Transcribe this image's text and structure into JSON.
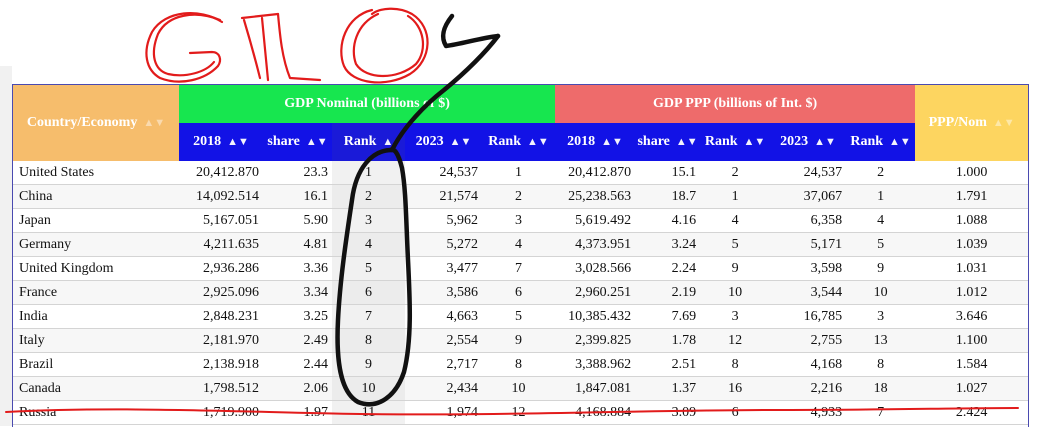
{
  "annotation": {
    "handwritten_text": "G10",
    "ink_colors": {
      "red": "#e21b1b",
      "black": "#111111"
    }
  },
  "table": {
    "header": {
      "country": "Country/Economy",
      "gdp_nominal": "GDP Nominal (billions of $)",
      "gdp_ppp": "GDP PPP (billions of Int. $)",
      "ppp_nom": "PPP/Nom",
      "sub": [
        "2018",
        "share",
        "Rank",
        "2023",
        "Rank",
        "2018",
        "share",
        "Rank",
        "2023",
        "Rank"
      ]
    },
    "colors": {
      "country": "#f6bd6c",
      "gdp_nominal": "#17e64f",
      "gdp_ppp": "#ee6b6b",
      "sub": "#1212e6",
      "ppp_nom": "#fdd560"
    },
    "rows": [
      [
        "United States",
        "20,412.870",
        "23.3",
        "1",
        "24,537",
        "1",
        "20,412.870",
        "15.1",
        "2",
        "24,537",
        "2",
        "1.000"
      ],
      [
        "China",
        "14,092.514",
        "16.1",
        "2",
        "21,574",
        "2",
        "25,238.563",
        "18.7",
        "1",
        "37,067",
        "1",
        "1.791"
      ],
      [
        "Japan",
        "5,167.051",
        "5.90",
        "3",
        "5,962",
        "3",
        "5,619.492",
        "4.16",
        "4",
        "6,358",
        "4",
        "1.088"
      ],
      [
        "Germany",
        "4,211.635",
        "4.81",
        "4",
        "5,272",
        "4",
        "4,373.951",
        "3.24",
        "5",
        "5,171",
        "5",
        "1.039"
      ],
      [
        "United Kingdom",
        "2,936.286",
        "3.36",
        "5",
        "3,477",
        "7",
        "3,028.566",
        "2.24",
        "9",
        "3,598",
        "9",
        "1.031"
      ],
      [
        "France",
        "2,925.096",
        "3.34",
        "6",
        "3,586",
        "6",
        "2,960.251",
        "2.19",
        "10",
        "3,544",
        "10",
        "1.012"
      ],
      [
        "India",
        "2,848.231",
        "3.25",
        "7",
        "4,663",
        "5",
        "10,385.432",
        "7.69",
        "3",
        "16,785",
        "3",
        "3.646"
      ],
      [
        "Italy",
        "2,181.970",
        "2.49",
        "8",
        "2,554",
        "9",
        "2,399.825",
        "1.78",
        "12",
        "2,755",
        "13",
        "1.100"
      ],
      [
        "Brazil",
        "2,138.918",
        "2.44",
        "9",
        "2,717",
        "8",
        "3,388.962",
        "2.51",
        "8",
        "4,168",
        "8",
        "1.584"
      ],
      [
        "Canada",
        "1,798.512",
        "2.06",
        "10",
        "2,434",
        "10",
        "1,847.081",
        "1.37",
        "16",
        "2,216",
        "18",
        "1.027"
      ],
      [
        "Russia",
        "1,719.900",
        "1.97",
        "11",
        "1,974",
        "12",
        "4,168.884",
        "3.09",
        "6",
        "4,933",
        "7",
        "2.424"
      ]
    ]
  }
}
